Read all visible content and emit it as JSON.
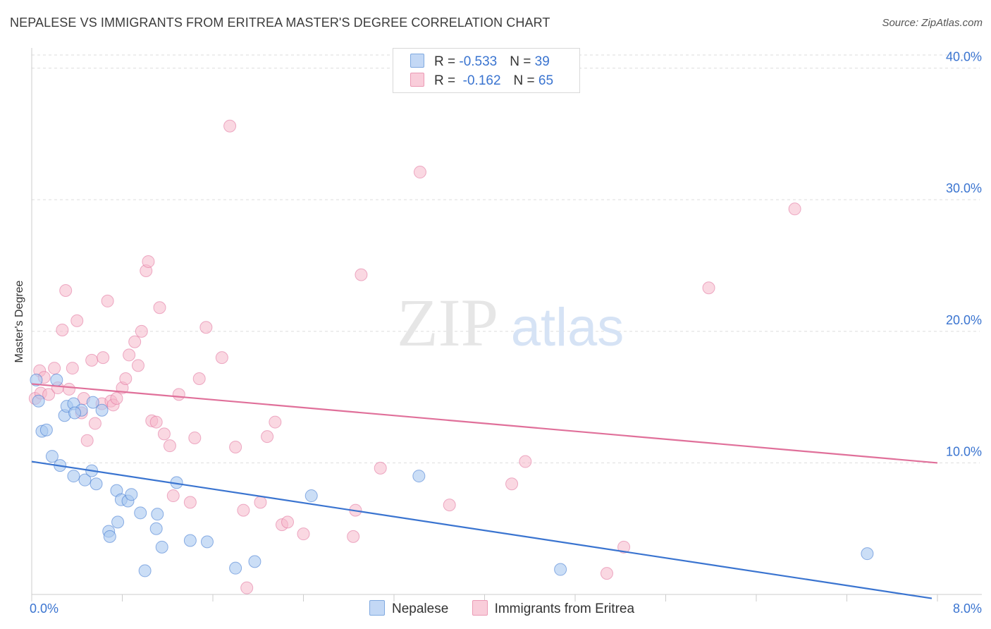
{
  "title": "NEPALESE VS IMMIGRANTS FROM ERITREA MASTER'S DEGREE CORRELATION CHART",
  "source": "Source: ZipAtlas.com",
  "watermark": {
    "zip": "ZIP",
    "atlas": "atlas"
  },
  "colors": {
    "blue": "#3a74d0",
    "blue_fill": "#a9c8f0",
    "pink": "#e0709a",
    "pink_fill": "#f5b8cb",
    "grid": "#dddddd"
  },
  "legend": {
    "rows": [
      {
        "r_label": "R = ",
        "r_value": "-0.533",
        "n_label": "N = ",
        "n_value": "39"
      },
      {
        "r_label": "R = ",
        "r_value": " -0.162",
        "n_label": "N = ",
        "n_value": "65"
      }
    ]
  },
  "chart_data": {
    "type": "scatter",
    "title": "NEPALESE VS IMMIGRANTS FROM ERITREA MASTER'S DEGREE CORRELATION CHART",
    "xlabel": "",
    "ylabel": "Master's Degree",
    "xlim": [
      0,
      8
    ],
    "ylim": [
      0,
      41
    ],
    "x_tick_labels": [
      "0.0%",
      "8.0%"
    ],
    "y_ticks": [
      10,
      20,
      30,
      40
    ],
    "y_tick_labels": [
      "10.0%",
      "20.0%",
      "30.0%",
      "40.0%"
    ],
    "grid": "horizontal dashed",
    "legend_position": "bottom-center",
    "series": [
      {
        "name": "Nepalese",
        "color": "#3a74d0",
        "trend": {
          "x": [
            0,
            7.95
          ],
          "y": [
            10.1,
            -0.3
          ]
        },
        "points": [
          {
            "x": 0.04,
            "y": 16.3
          },
          {
            "x": 0.06,
            "y": 14.7
          },
          {
            "x": 0.09,
            "y": 12.4
          },
          {
            "x": 0.13,
            "y": 12.5
          },
          {
            "x": 0.18,
            "y": 10.5
          },
          {
            "x": 0.25,
            "y": 9.8
          },
          {
            "x": 0.22,
            "y": 16.3
          },
          {
            "x": 0.29,
            "y": 13.6
          },
          {
            "x": 0.31,
            "y": 14.3
          },
          {
            "x": 0.37,
            "y": 14.5
          },
          {
            "x": 0.44,
            "y": 14.0
          },
          {
            "x": 0.38,
            "y": 13.8
          },
          {
            "x": 0.54,
            "y": 14.6
          },
          {
            "x": 0.62,
            "y": 14.0
          },
          {
            "x": 0.37,
            "y": 9.0
          },
          {
            "x": 0.47,
            "y": 8.7
          },
          {
            "x": 0.53,
            "y": 9.4
          },
          {
            "x": 0.57,
            "y": 8.4
          },
          {
            "x": 0.75,
            "y": 7.9
          },
          {
            "x": 0.79,
            "y": 7.2
          },
          {
            "x": 0.85,
            "y": 7.1
          },
          {
            "x": 0.88,
            "y": 7.6
          },
          {
            "x": 0.96,
            "y": 6.2
          },
          {
            "x": 0.76,
            "y": 5.5
          },
          {
            "x": 0.68,
            "y": 4.8
          },
          {
            "x": 0.69,
            "y": 4.4
          },
          {
            "x": 1.11,
            "y": 6.1
          },
          {
            "x": 1.28,
            "y": 8.5
          },
          {
            "x": 1.1,
            "y": 5.0
          },
          {
            "x": 1.15,
            "y": 3.6
          },
          {
            "x": 1.4,
            "y": 4.1
          },
          {
            "x": 1.55,
            "y": 4.0
          },
          {
            "x": 1.0,
            "y": 1.8
          },
          {
            "x": 1.8,
            "y": 2.0
          },
          {
            "x": 1.97,
            "y": 2.5
          },
          {
            "x": 2.47,
            "y": 7.5
          },
          {
            "x": 3.42,
            "y": 9.0
          },
          {
            "x": 4.67,
            "y": 1.9
          },
          {
            "x": 7.38,
            "y": 3.1
          }
        ]
      },
      {
        "name": "Immigrants from Eritrea",
        "color": "#e0709a",
        "trend": {
          "x": [
            0,
            8
          ],
          "y": [
            16.0,
            10.0
          ]
        },
        "points": [
          {
            "x": 0.03,
            "y": 14.9
          },
          {
            "x": 0.07,
            "y": 17.0
          },
          {
            "x": 0.08,
            "y": 15.3
          },
          {
            "x": 0.11,
            "y": 16.5
          },
          {
            "x": 0.15,
            "y": 15.2
          },
          {
            "x": 0.2,
            "y": 17.2
          },
          {
            "x": 0.23,
            "y": 15.7
          },
          {
            "x": 0.27,
            "y": 20.1
          },
          {
            "x": 0.3,
            "y": 23.1
          },
          {
            "x": 0.33,
            "y": 15.6
          },
          {
            "x": 0.36,
            "y": 17.2
          },
          {
            "x": 0.4,
            "y": 20.8
          },
          {
            "x": 0.44,
            "y": 13.8
          },
          {
            "x": 0.46,
            "y": 14.9
          },
          {
            "x": 0.49,
            "y": 11.7
          },
          {
            "x": 0.53,
            "y": 17.8
          },
          {
            "x": 0.56,
            "y": 13.0
          },
          {
            "x": 0.62,
            "y": 14.5
          },
          {
            "x": 0.63,
            "y": 18.0
          },
          {
            "x": 0.67,
            "y": 22.3
          },
          {
            "x": 0.7,
            "y": 14.7
          },
          {
            "x": 0.72,
            "y": 14.4
          },
          {
            "x": 0.75,
            "y": 14.9
          },
          {
            "x": 0.8,
            "y": 15.7
          },
          {
            "x": 0.83,
            "y": 16.4
          },
          {
            "x": 0.86,
            "y": 18.2
          },
          {
            "x": 0.91,
            "y": 19.2
          },
          {
            "x": 0.94,
            "y": 17.4
          },
          {
            "x": 0.97,
            "y": 20.0
          },
          {
            "x": 1.01,
            "y": 24.6
          },
          {
            "x": 1.03,
            "y": 25.3
          },
          {
            "x": 1.06,
            "y": 13.2
          },
          {
            "x": 1.1,
            "y": 13.1
          },
          {
            "x": 1.13,
            "y": 21.8
          },
          {
            "x": 1.17,
            "y": 12.2
          },
          {
            "x": 1.22,
            "y": 11.3
          },
          {
            "x": 1.25,
            "y": 7.5
          },
          {
            "x": 1.3,
            "y": 15.2
          },
          {
            "x": 1.4,
            "y": 7.0
          },
          {
            "x": 1.44,
            "y": 11.9
          },
          {
            "x": 1.48,
            "y": 16.4
          },
          {
            "x": 1.54,
            "y": 20.3
          },
          {
            "x": 1.68,
            "y": 18.0
          },
          {
            "x": 1.75,
            "y": 35.6
          },
          {
            "x": 1.8,
            "y": 11.2
          },
          {
            "x": 1.87,
            "y": 6.4
          },
          {
            "x": 1.9,
            "y": 0.5
          },
          {
            "x": 2.02,
            "y": 7.0
          },
          {
            "x": 2.08,
            "y": 12.0
          },
          {
            "x": 2.15,
            "y": 13.1
          },
          {
            "x": 2.21,
            "y": 5.3
          },
          {
            "x": 2.26,
            "y": 5.5
          },
          {
            "x": 2.4,
            "y": 4.6
          },
          {
            "x": 2.84,
            "y": 4.4
          },
          {
            "x": 2.86,
            "y": 6.4
          },
          {
            "x": 2.91,
            "y": 24.3
          },
          {
            "x": 3.08,
            "y": 9.6
          },
          {
            "x": 3.43,
            "y": 32.1
          },
          {
            "x": 3.69,
            "y": 6.8
          },
          {
            "x": 4.24,
            "y": 8.4
          },
          {
            "x": 4.36,
            "y": 10.1
          },
          {
            "x": 5.08,
            "y": 1.6
          },
          {
            "x": 5.23,
            "y": 3.6
          },
          {
            "x": 5.98,
            "y": 23.3
          },
          {
            "x": 6.74,
            "y": 29.3
          }
        ]
      }
    ]
  }
}
